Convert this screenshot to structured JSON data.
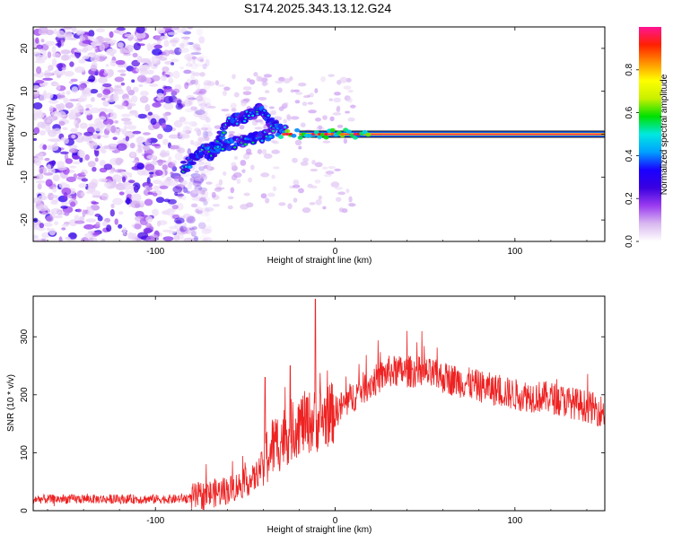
{
  "title": "S174.2025.343.13.12.G24",
  "chart_data": [
    {
      "type": "heatmap",
      "xlabel": "Height of straight line (km)",
      "ylabel": "Frequency (Hz)",
      "xlim": [
        -168,
        150
      ],
      "ylim": [
        -25,
        25
      ],
      "xticks": [
        -100,
        0,
        100
      ],
      "yticks": [
        -20,
        -10,
        0,
        10,
        20
      ],
      "colorbar": {
        "label": "Normalized spectral amplitude",
        "range": [
          0,
          1
        ],
        "ticks": [
          0.0,
          0.2,
          0.4,
          0.6,
          0.8
        ],
        "tick_labels": [
          "0.0",
          "0.2",
          "0.4",
          "0.6",
          "0.8"
        ],
        "colormap": [
          "#ffffff",
          "#d9b8f0",
          "#9b3cf0",
          "#3a00e0",
          "#1900ff",
          "#00a0ff",
          "#00e8e0",
          "#00e000",
          "#c8f000",
          "#ffff00",
          "#ff9000",
          "#ff2000",
          "#ff1493"
        ]
      },
      "features": [
        {
          "name": "noise region",
          "x_range": [
            -168,
            -80
          ],
          "freq_range": [
            -25,
            25
          ],
          "amplitude": "0.05-0.3"
        },
        {
          "name": "lower branch",
          "points": [
            [
              -85,
              -8
            ],
            [
              -75,
              -4
            ],
            [
              -65,
              -3
            ],
            [
              -55,
              -2
            ],
            [
              -45,
              -1
            ],
            [
              -35,
              0
            ]
          ]
        },
        {
          "name": "upper branch",
          "points": [
            [
              -70,
              -6
            ],
            [
              -60,
              3
            ],
            [
              -50,
              4
            ],
            [
              -42,
              6
            ],
            [
              -35,
              2
            ],
            [
              -28,
              1
            ]
          ]
        },
        {
          "name": "carrier line",
          "x_range": [
            -30,
            150
          ],
          "freq": 0,
          "amplitude": "0.8-1.0"
        }
      ]
    },
    {
      "type": "line",
      "xlabel": "Height of straight line (km)",
      "ylabel": "SNR (10 * v/v)",
      "xlim": [
        -168,
        150
      ],
      "ylim": [
        0,
        370
      ],
      "xticks": [
        -100,
        0,
        100
      ],
      "yticks": [
        0,
        100,
        200,
        300
      ],
      "line_color": "#ee2222",
      "envelope": {
        "x": [
          -168,
          -140,
          -110,
          -90,
          -80,
          -60,
          -45,
          -35,
          -20,
          -10,
          0,
          15,
          30,
          45,
          60,
          80,
          100,
          120,
          140,
          150
        ],
        "y": [
          20,
          20,
          20,
          20,
          22,
          35,
          55,
          110,
          150,
          155,
          170,
          210,
          240,
          240,
          230,
          215,
          200,
          195,
          180,
          170
        ]
      },
      "spread": [
        {
          "x_range": [
            -168,
            -80
          ],
          "amplitude": 8
        },
        {
          "x_range": [
            -80,
            -40
          ],
          "amplitude": 25
        },
        {
          "x_range": [
            -40,
            0
          ],
          "amplitude": 55
        },
        {
          "x_range": [
            0,
            150
          ],
          "amplitude": 28
        }
      ],
      "spikes": [
        {
          "x": -11,
          "y": 365
        },
        {
          "x": -25,
          "y": 250
        },
        {
          "x": -39,
          "y": 230
        },
        {
          "x": 40,
          "y": 310
        }
      ]
    }
  ]
}
